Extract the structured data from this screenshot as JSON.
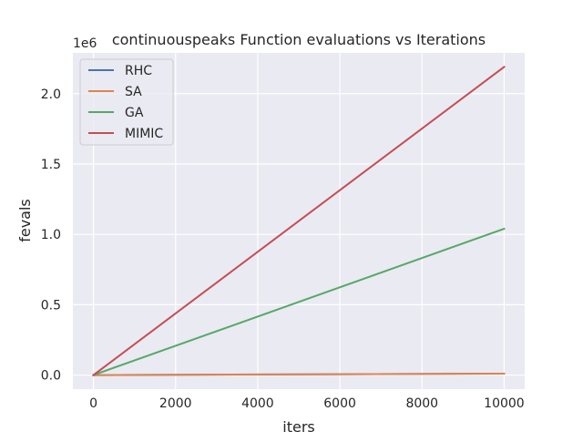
{
  "chart_data": {
    "type": "line",
    "title": "continuouspeaks Function evaluations vs Iterations",
    "xlabel": "iters",
    "ylabel": "fevals",
    "y_offset_label": "1e6",
    "xlim": [
      -500,
      10500
    ],
    "ylim": [
      -100000,
      2290000
    ],
    "x_ticks": [
      0,
      2000,
      4000,
      6000,
      8000,
      10000
    ],
    "x_tick_labels": [
      "0",
      "2000",
      "4000",
      "6000",
      "8000",
      "10000"
    ],
    "y_ticks": [
      0,
      500000,
      1000000,
      1500000,
      2000000
    ],
    "y_tick_labels": [
      "0.0",
      "0.5",
      "1.0",
      "1.5",
      "2.0"
    ],
    "grid": true,
    "legend_position": "top-left",
    "series": [
      {
        "name": "RHC",
        "color": "#4c72b0",
        "x": [
          0,
          10000
        ],
        "y": [
          0,
          10000
        ]
      },
      {
        "name": "SA",
        "color": "#dd8452",
        "x": [
          0,
          10000
        ],
        "y": [
          0,
          10000
        ]
      },
      {
        "name": "GA",
        "color": "#55a868",
        "x": [
          0,
          10000
        ],
        "y": [
          0,
          1040000
        ]
      },
      {
        "name": "MIMIC",
        "color": "#c44e52",
        "x": [
          0,
          10000
        ],
        "y": [
          0,
          2190000
        ]
      }
    ]
  }
}
